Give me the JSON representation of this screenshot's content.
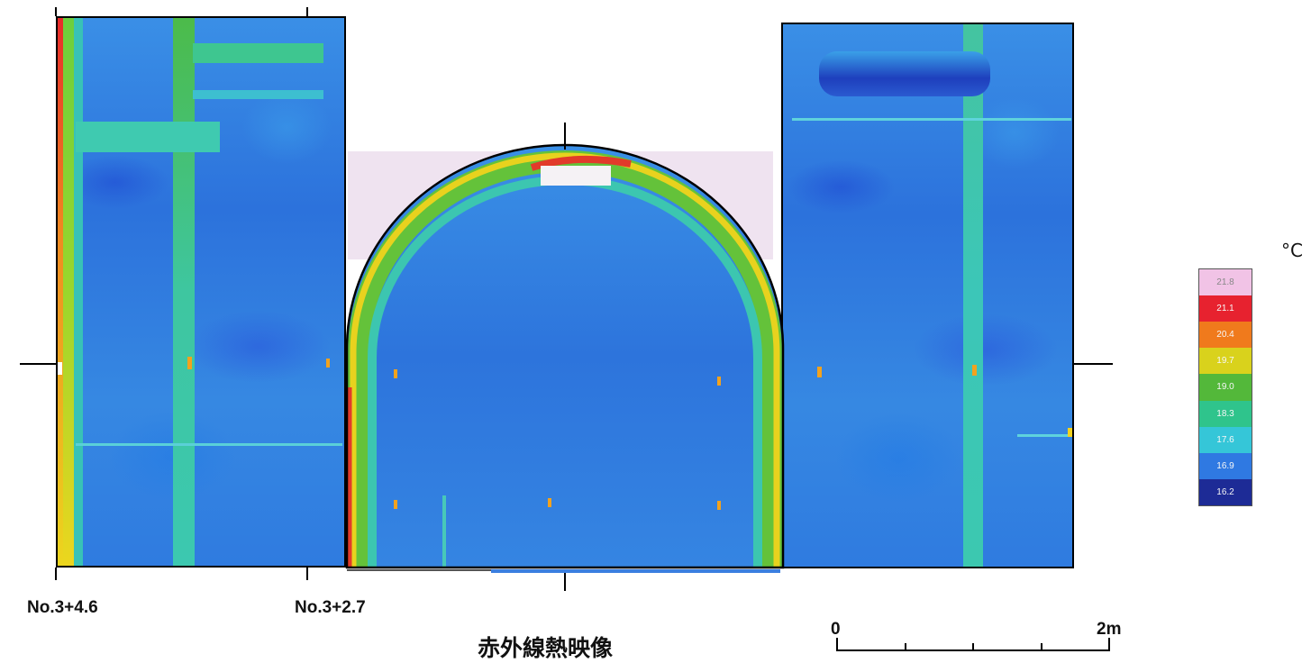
{
  "title": "赤外線熱映像",
  "station_labels": {
    "left": "No.3+4.6",
    "right": "No.3+2.7"
  },
  "scale_bar": {
    "start_label": "0",
    "end_label": "2m"
  },
  "legend": {
    "unit": "°C",
    "entries": [
      {
        "label": "21.8",
        "color": "#f1c3e6"
      },
      {
        "label": "21.1",
        "color": "#e7222f"
      },
      {
        "label": "20.4",
        "color": "#f07a1c"
      },
      {
        "label": "19.7",
        "color": "#d9d21c"
      },
      {
        "label": "19.0",
        "color": "#53b83a"
      },
      {
        "label": "18.3",
        "color": "#2fc48c"
      },
      {
        "label": "17.6",
        "color": "#35c6d8"
      },
      {
        "label": "16.9",
        "color": "#2f79e2"
      },
      {
        "label": "16.2",
        "color": "#1d2b96"
      }
    ]
  }
}
